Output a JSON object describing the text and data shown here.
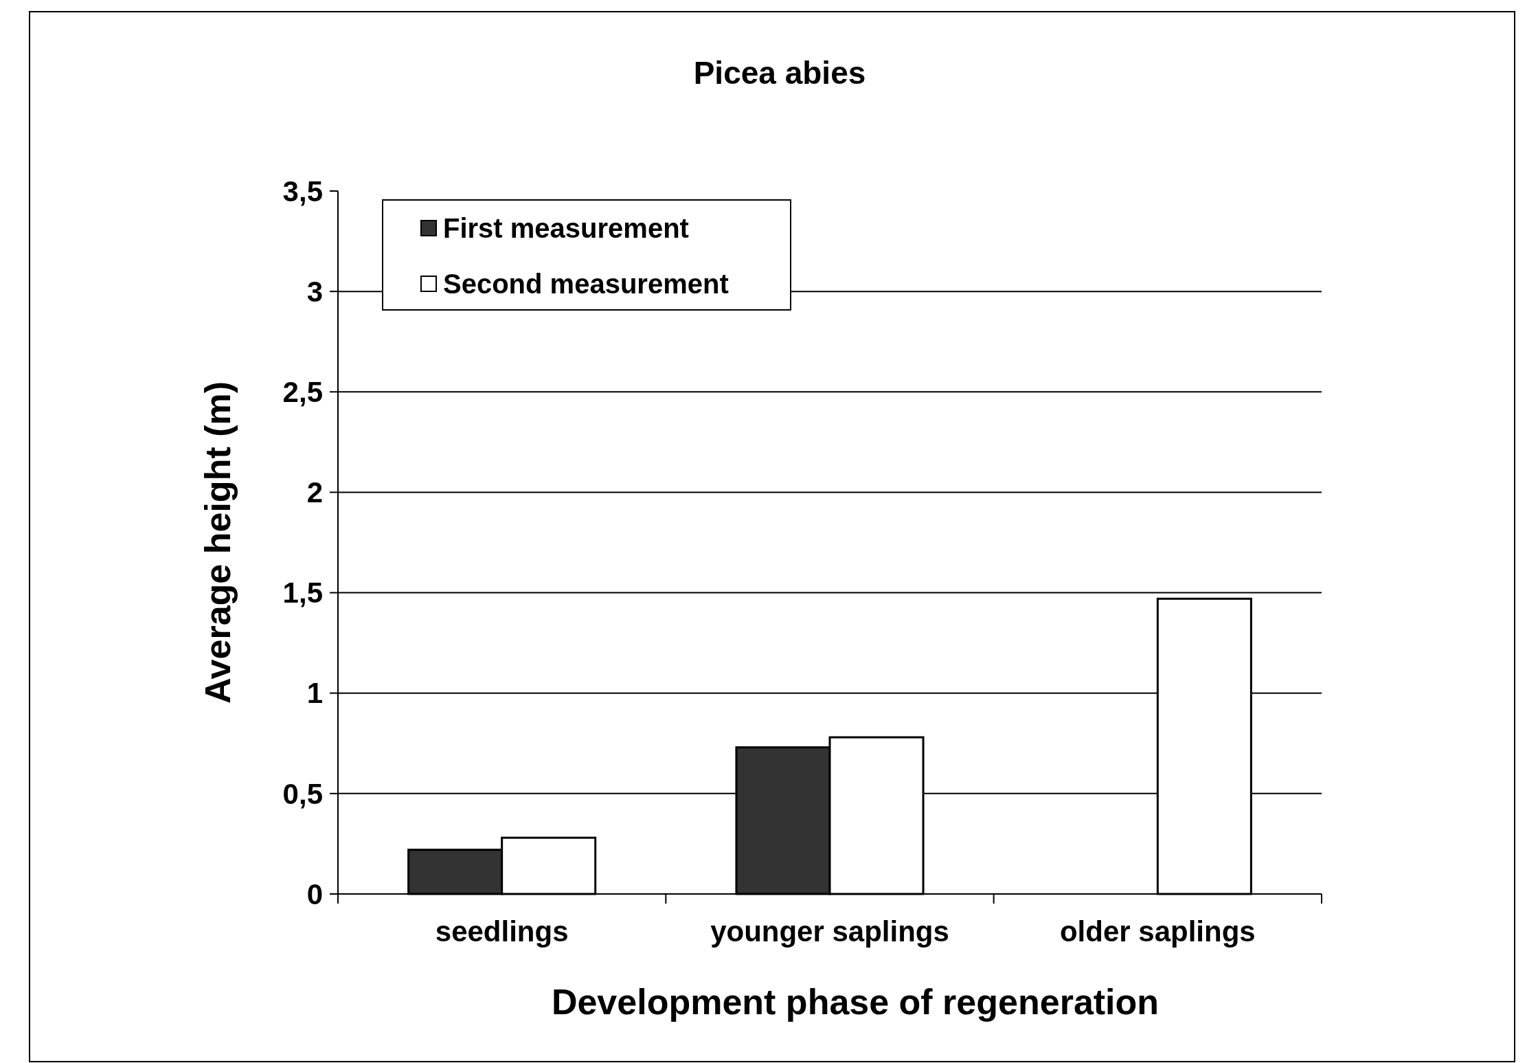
{
  "chart_data": {
    "type": "bar",
    "title": "Picea abies",
    "xlabel": "Development phase of regeneration",
    "ylabel": "Average height (m)",
    "categories": [
      "seedlings",
      "younger saplings",
      "older saplings"
    ],
    "series": [
      {
        "name": "First measurement",
        "color": "#333333",
        "values": [
          0.22,
          0.73,
          null
        ]
      },
      {
        "name": "Second measurement",
        "color": "#ffffff",
        "values": [
          0.28,
          0.78,
          1.47
        ]
      }
    ],
    "ylim": [
      0,
      3.5
    ],
    "yticks": [
      0,
      {
        "value": 0.5,
        "label": "0,5"
      },
      1,
      {
        "value": 1.5,
        "label": "1,5"
      },
      2,
      {
        "value": 2.5,
        "label": "2,5"
      },
      3,
      {
        "value": 3.5,
        "label": "3,5"
      }
    ],
    "grid": "y",
    "legend": "top left"
  }
}
